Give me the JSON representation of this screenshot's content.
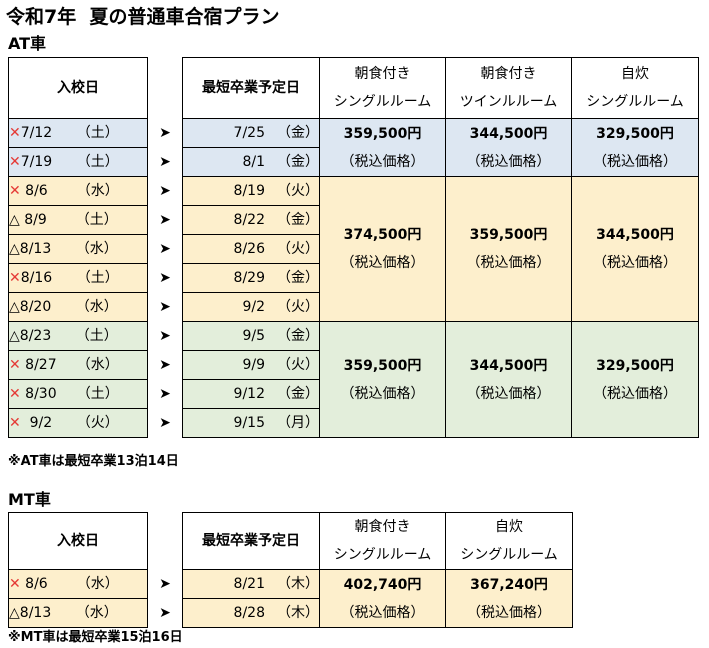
{
  "title": "令和7年  夏の普通車合宿プラン",
  "at": {
    "section_label": "AT車",
    "header": {
      "entry": "入校日",
      "grad": "最短卒業予定日",
      "plan1_line1": "朝食付き",
      "plan1_line2": "シングルルーム",
      "plan2_line1": "朝食付き",
      "plan2_line2": "ツインルルーム",
      "plan3_line1": "自炊",
      "plan3_line2": "シングルルーム"
    },
    "arrow": "➤",
    "rows": [
      {
        "mark": "✕",
        "date": "7/12",
        "day": "（土）",
        "gdate": "7/25",
        "gday": "（金）"
      },
      {
        "mark": "✕",
        "date": "7/19",
        "day": "（土）",
        "gdate": "8/1",
        "gday": "（金）"
      },
      {
        "mark": "✕",
        "date": " 8/6",
        "day": "（水）",
        "gdate": "8/19",
        "gday": "（火）"
      },
      {
        "mark": "△",
        "date": " 8/9",
        "day": "（土）",
        "gdate": "8/22",
        "gday": "（金）"
      },
      {
        "mark": "△",
        "date": "8/13",
        "day": "（水）",
        "gdate": "8/26",
        "gday": "（火）"
      },
      {
        "mark": "✕",
        "date": "8/16",
        "day": "（土）",
        "gdate": "8/29",
        "gday": "（金）"
      },
      {
        "mark": "△",
        "date": "8/20",
        "day": "（水）",
        "gdate": "9/2",
        "gday": "（火）"
      },
      {
        "mark": "△",
        "date": "8/23",
        "day": "（土）",
        "gdate": "9/5",
        "gday": "（金）"
      },
      {
        "mark": "✕",
        "date": " 8/27",
        "day": "（水）",
        "gdate": "9/9",
        "gday": "（火）"
      },
      {
        "mark": "✕",
        "date": " 8/30",
        "day": "（土）",
        "gdate": "9/12",
        "gday": "（金）"
      },
      {
        "mark": "✕",
        "date": "  9/2",
        "day": "（火）",
        "gdate": "9/15",
        "gday": "（月）"
      }
    ],
    "groups": [
      {
        "p1": "359,500円",
        "p2": "344,500円",
        "p3": "329,500円",
        "tax": "（税込価格）"
      },
      {
        "p1": "374,500円",
        "p2": "359,500円",
        "p3": "344,500円",
        "tax": "（税込価格）"
      },
      {
        "p1": "359,500円",
        "p2": "344,500円",
        "p3": "329,500円",
        "tax": "（税込価格）"
      }
    ],
    "note": "※AT車は最短卒業13泊14日"
  },
  "mt": {
    "section_label": "MT車",
    "header": {
      "entry": "入校日",
      "grad": "最短卒業予定日",
      "plan1_line1": "朝食付き",
      "plan1_line2": "シングルルーム",
      "plan2_line1": "自炊",
      "plan2_line2": "シングルルーム"
    },
    "arrow": "➤",
    "rows": [
      {
        "mark": "✕",
        "date": " 8/6",
        "day": "（水）",
        "gdate": "8/21",
        "gday": "（木）"
      },
      {
        "mark": "△",
        "date": "8/13",
        "day": "（水）",
        "gdate": "8/28",
        "gday": "（木）"
      }
    ],
    "prices": {
      "p1": "402,740円",
      "p2": "367,240円",
      "tax": "（税込価格）"
    },
    "note": "※MT車は最短卒業15泊16日"
  }
}
